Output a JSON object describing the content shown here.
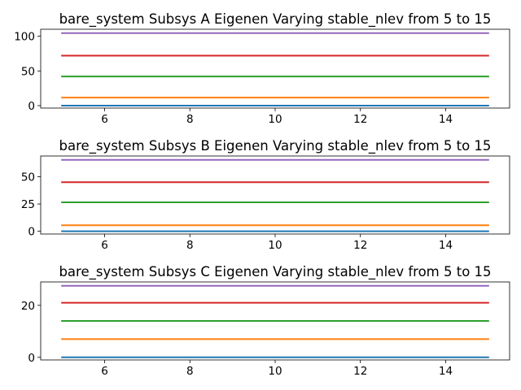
{
  "chart_data": [
    {
      "type": "line",
      "title": "bare_system Subsys A Eigenen Varying stable_nlev from 5 to 15",
      "x": [
        5,
        6,
        7,
        8,
        9,
        10,
        11,
        12,
        13,
        14,
        15
      ],
      "xlim": [
        4.5,
        15.5
      ],
      "ylim": [
        -3.5,
        110
      ],
      "xticks": [
        6,
        8,
        10,
        12,
        14
      ],
      "yticks": [
        0,
        50,
        100
      ],
      "series": [
        {
          "color": "#1f77b4",
          "value": 0
        },
        {
          "color": "#ff7f0e",
          "value": 11.5
        },
        {
          "color": "#2ca02c",
          "value": 42
        },
        {
          "color": "#d62728",
          "value": 72
        },
        {
          "color": "#9467bd",
          "value": 104.5
        }
      ]
    },
    {
      "type": "line",
      "title": "bare_system Subsys B Eigenen Varying stable_nlev from 5 to 15",
      "x": [
        5,
        6,
        7,
        8,
        9,
        10,
        11,
        12,
        13,
        14,
        15
      ],
      "xlim": [
        4.5,
        15.5
      ],
      "ylim": [
        -2.5,
        69
      ],
      "xticks": [
        6,
        8,
        10,
        12,
        14
      ],
      "yticks": [
        0,
        25,
        50
      ],
      "series": [
        {
          "color": "#1f77b4",
          "value": 0
        },
        {
          "color": "#ff7f0e",
          "value": 5.5
        },
        {
          "color": "#2ca02c",
          "value": 26.5
        },
        {
          "color": "#d62728",
          "value": 45
        },
        {
          "color": "#9467bd",
          "value": 65.5
        }
      ]
    },
    {
      "type": "line",
      "title": "bare_system Subsys C Eigenen Varying stable_nlev from 5 to 15",
      "x": [
        5,
        6,
        7,
        8,
        9,
        10,
        11,
        12,
        13,
        14,
        15
      ],
      "xlim": [
        4.5,
        15.5
      ],
      "ylim": [
        -1,
        29
      ],
      "xticks": [
        6,
        8,
        10,
        12,
        14
      ],
      "yticks": [
        0,
        20
      ],
      "series": [
        {
          "color": "#1f77b4",
          "value": 0
        },
        {
          "color": "#ff7f0e",
          "value": 7
        },
        {
          "color": "#2ca02c",
          "value": 14
        },
        {
          "color": "#d62728",
          "value": 21
        },
        {
          "color": "#9467bd",
          "value": 27.5
        }
      ]
    }
  ]
}
